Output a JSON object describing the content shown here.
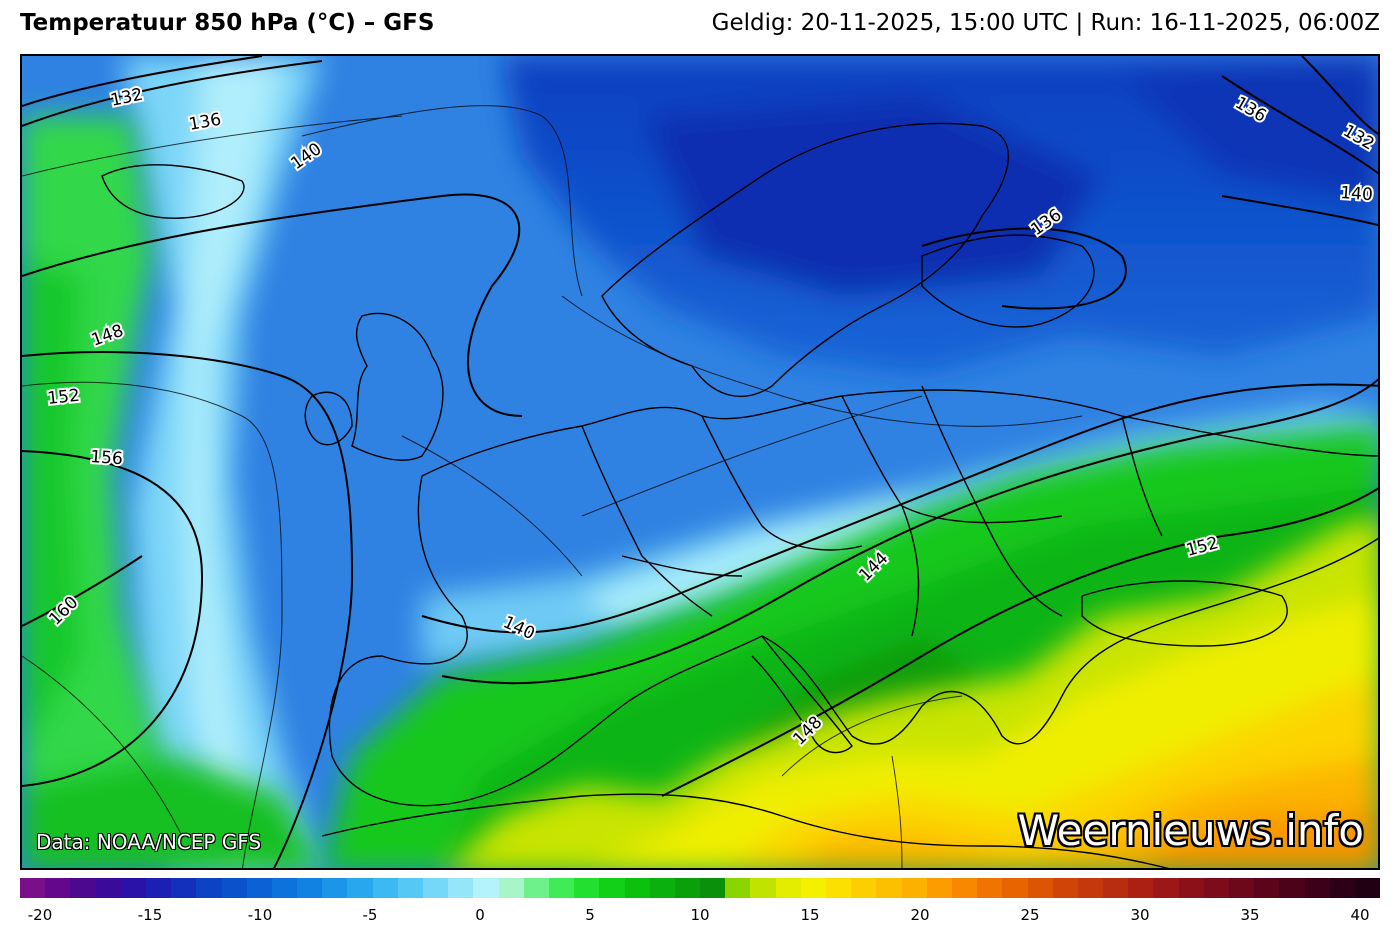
{
  "header": {
    "title": "Temperatuur 850 hPa (°C) – GFS",
    "valid_info": "Geldig: 20-11-2025, 15:00 UTC | Run: 16-11-2025, 06:00Z"
  },
  "map": {
    "source_note": "Data: NOAA/NCEP GFS",
    "watermark": "Weernieuws.info",
    "contour_labels": [
      "132",
      "136",
      "140",
      "148",
      "152",
      "156",
      "160",
      "140",
      "144",
      "148",
      "152",
      "136",
      "132",
      "140",
      "136"
    ]
  },
  "colorbar": {
    "ticks": [
      "-20",
      "-15",
      "-10",
      "-5",
      "0",
      "5",
      "10",
      "15",
      "20",
      "25",
      "30",
      "35",
      "40"
    ],
    "colors": [
      "#7a0f8a",
      "#65078c",
      "#4d0890",
      "#3a0a9a",
      "#2a12a8",
      "#1a20b4",
      "#1230bc",
      "#0c42c4",
      "#0a52cc",
      "#0c62d4",
      "#0e72dc",
      "#1282e2",
      "#1c94e8",
      "#28a6ee",
      "#3cb8f2",
      "#56c8f6",
      "#76d8f8",
      "#96e6fa",
      "#b4f2fc",
      "#a8f6c8",
      "#6ef08a",
      "#40ec56",
      "#22e030",
      "#12d018",
      "#0cc010",
      "#0ab00c",
      "#0aa00a",
      "#0a900a",
      "#8ad400",
      "#c0e400",
      "#e4ec00",
      "#f4f000",
      "#fce000",
      "#fcd000",
      "#fcc000",
      "#fcb000",
      "#fc9c00",
      "#f88800",
      "#f07400",
      "#e86400",
      "#dc5404",
      "#d04408",
      "#c4380c",
      "#b82c10",
      "#ac2014",
      "#9c1818",
      "#8c1018",
      "#7c0c1a",
      "#6c081a",
      "#5c041a",
      "#4c0218",
      "#3c0018",
      "#2c0016",
      "#200012"
    ]
  }
}
